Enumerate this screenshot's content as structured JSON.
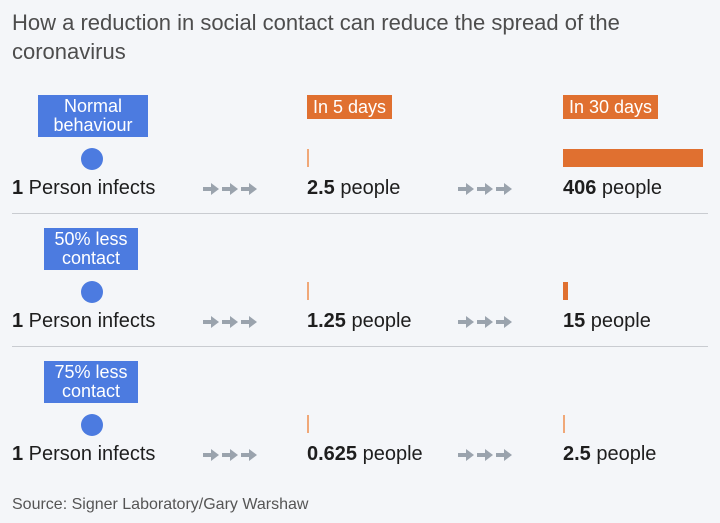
{
  "title": "How a reduction in social contact can reduce the spread of the coronavirus",
  "headers": {
    "col5": "In 5 days",
    "col30": "In 30 days"
  },
  "source": "Source: Signer Laboratory/Gary Warshaw",
  "colors": {
    "blue": "#4c7be0",
    "orange": "#e07030",
    "arrow": "#9aa3ad"
  },
  "chart_data": {
    "type": "bar",
    "title": "How a reduction in social contact can reduce the spread of the coronavirus",
    "categories": [
      "In 5 days",
      "In 30 days"
    ],
    "series": [
      {
        "name": "Normal behaviour",
        "start_value": "1",
        "start_label": "Person infects",
        "values": [
          2.5,
          406
        ],
        "value_labels": [
          "2.5",
          "406"
        ]
      },
      {
        "name": "50% less contact",
        "start_value": "1",
        "start_label": "Person infects",
        "values": [
          1.25,
          15
        ],
        "value_labels": [
          "1.25",
          "15"
        ]
      },
      {
        "name": "75% less contact",
        "start_value": "1",
        "start_label": "Person infects",
        "values": [
          0.625,
          2.5
        ],
        "value_labels": [
          "0.625",
          "2.5"
        ]
      }
    ],
    "unit": "people",
    "max_value": 406
  }
}
